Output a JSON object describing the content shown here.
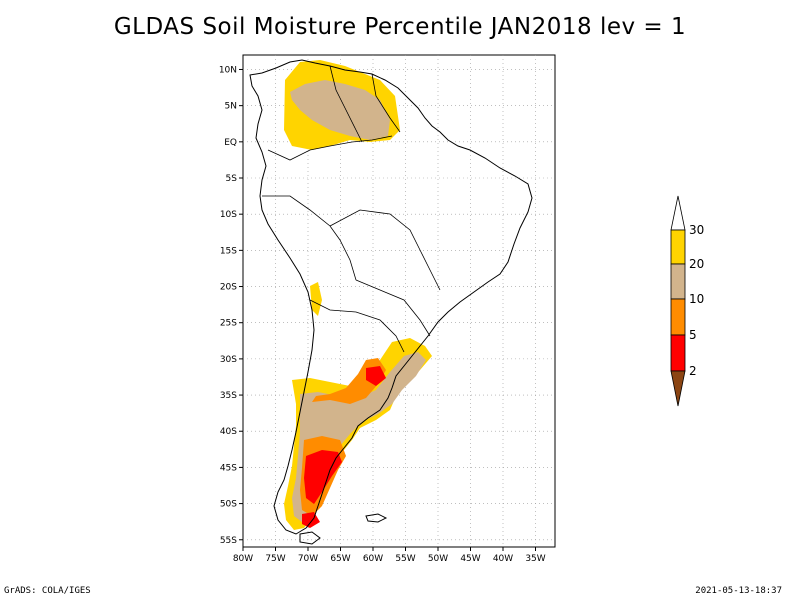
{
  "title": "GLDAS Soil Moisture Percentile JAN2018 lev = 1",
  "footer": {
    "left": "GrADS: COLA/IGES",
    "right": "2021-05-13-18:37"
  },
  "map": {
    "lon_range": [
      -80,
      -32
    ],
    "lat_range": [
      -56,
      12
    ],
    "x_ticks": [
      "80W",
      "75W",
      "70W",
      "65W",
      "60W",
      "55W",
      "50W",
      "45W",
      "40W",
      "35W"
    ],
    "y_ticks": [
      "10N",
      "5N",
      "EQ",
      "5S",
      "10S",
      "15S",
      "20S",
      "25S",
      "30S",
      "35S",
      "40S",
      "45S",
      "50S",
      "55S"
    ],
    "grid": true
  },
  "colorbar": {
    "labels": [
      "30",
      "20",
      "10",
      "5",
      "2"
    ],
    "colors": {
      "above_30": "#ffffff",
      "20_30": "#ffd400",
      "10_20": "#d2b48c",
      "5_10": "#ff8c00",
      "2_5": "#ff0000",
      "below_2": "#8b4513"
    }
  }
}
